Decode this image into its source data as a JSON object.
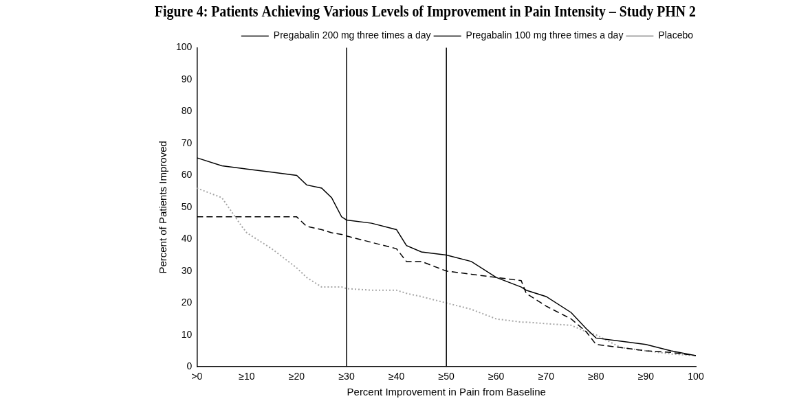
{
  "chart_data": {
    "type": "line",
    "title": "Figure 4: Patients Achieving Various Levels of Improvement in Pain Intensity – Study PHN 2",
    "x_label": "Percent Improvement in Pain from Baseline",
    "y_label": "Percent of Patients Improved",
    "x": [
      0,
      5,
      9,
      10,
      15,
      20,
      22,
      25,
      27,
      29,
      30,
      35,
      40,
      42,
      45,
      50,
      55,
      60,
      65,
      66,
      70,
      75,
      78,
      80,
      85,
      90,
      95,
      100
    ],
    "series": [
      {
        "name": "Pregabalin 200 mg three times a day",
        "color": "#000000",
        "line_style": "solid",
        "values": [
          65.5,
          63,
          62.2,
          62,
          61,
          60,
          57,
          56,
          53,
          47,
          46,
          45,
          43,
          38,
          36,
          35,
          33,
          28,
          25,
          24,
          22,
          17,
          12,
          9,
          8,
          7,
          5,
          3.5
        ]
      },
      {
        "name": "Pregabalin 100 mg three times a day",
        "color": "#000000",
        "line_style": "dashed",
        "values": [
          47,
          47,
          47,
          47,
          47,
          47,
          44,
          43,
          42,
          41.5,
          41,
          39,
          37,
          33,
          33,
          30,
          29,
          28,
          27,
          23,
          19,
          15,
          11,
          7,
          6,
          5,
          4.5,
          3.5
        ]
      },
      {
        "name": "Placebo",
        "color": "#a6a6a6",
        "line_style": "dotted",
        "values": [
          56,
          53,
          44,
          42,
          37,
          31,
          28,
          25,
          25,
          25,
          24.5,
          24,
          24,
          23,
          22,
          20,
          18,
          15,
          14,
          14,
          13.5,
          13,
          11,
          10,
          6,
          5,
          4,
          3.5
        ]
      }
    ],
    "vlines": [
      30,
      50
    ],
    "xlim": [
      0,
      100
    ],
    "xticks": [
      {
        "value": 0,
        "label": ">0"
      },
      {
        "value": 10,
        "label": "≥10"
      },
      {
        "value": 20,
        "label": "≥20"
      },
      {
        "value": 30,
        "label": "≥30"
      },
      {
        "value": 40,
        "label": "≥40"
      },
      {
        "value": 50,
        "label": "≥50"
      },
      {
        "value": 60,
        "label": "≥60"
      },
      {
        "value": 70,
        "label": "≥70"
      },
      {
        "value": 80,
        "label": "≥80"
      },
      {
        "value": 90,
        "label": "≥90"
      },
      100
    ],
    "ylim": [
      0,
      100
    ],
    "yticks": [
      0,
      10,
      20,
      30,
      40,
      50,
      60,
      70,
      80,
      90,
      100
    ],
    "grid": false,
    "legend": "top-right",
    "marker": "none"
  }
}
